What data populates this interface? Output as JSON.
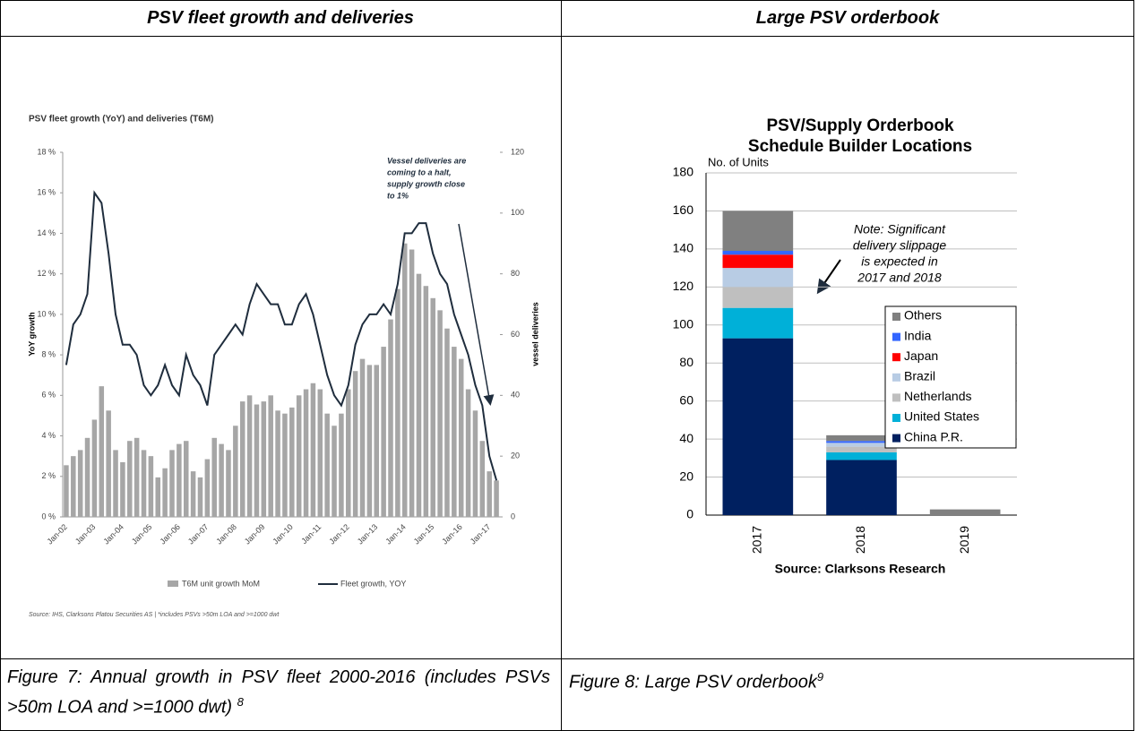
{
  "table": {
    "headers": [
      "PSV fleet growth and deliveries",
      "Large PSV orderbook"
    ],
    "captions": [
      {
        "text": "Figure 7: Annual growth in PSV fleet 2000-2016 (includes PSVs >50m LOA and >=1000 dwt)",
        "footnote": "8"
      },
      {
        "text": "Figure 8: Large PSV orderbook",
        "footnote": "9"
      }
    ]
  },
  "chart_data": [
    {
      "type": "combo",
      "title": "PSV fleet growth (YoY) and deliveries (T6M)",
      "ylabel": "YoY growth",
      "y2label": "vessel deliveries",
      "annotation_lines": [
        "Vessel deliveries are",
        "coming to a halt,",
        "supply growth close",
        "to 1%"
      ],
      "source": "Source: IHS, Clarksons Platou Securities AS | *includes PSVs >50m LOA and >=1000 dwt",
      "categories": [
        "Jan-02",
        null,
        null,
        null,
        "Jan-03",
        null,
        null,
        null,
        "Jan-04",
        null,
        null,
        null,
        "Jan-05",
        null,
        null,
        null,
        "Jan-06",
        null,
        null,
        null,
        "Jan-07",
        null,
        null,
        null,
        "Jan-08",
        null,
        null,
        null,
        "Jan-09",
        null,
        null,
        null,
        "Jan-10",
        null,
        null,
        null,
        "Jan-11",
        null,
        null,
        null,
        "Jan-12",
        null,
        null,
        null,
        "Jan-13",
        null,
        null,
        null,
        "Jan-14",
        null,
        null,
        null,
        "Jan-15",
        null,
        null,
        null,
        "Jan-16",
        null,
        null,
        null,
        "Jan-17",
        null
      ],
      "series": [
        {
          "name": "T6M unit growth MoM",
          "type": "bar",
          "axis": "y2",
          "color": "#a6a6a6",
          "values": [
            17,
            20,
            22,
            26,
            32,
            43,
            35,
            22,
            18,
            25,
            26,
            22,
            20,
            13,
            16,
            22,
            24,
            25,
            15,
            13,
            19,
            26,
            24,
            22,
            30,
            38,
            40,
            37,
            38,
            40,
            35,
            34,
            36,
            40,
            42,
            44,
            42,
            34,
            30,
            34,
            42,
            48,
            52,
            50,
            50,
            56,
            65,
            75,
            90,
            88,
            80,
            76,
            72,
            68,
            62,
            56,
            52,
            42,
            35,
            25,
            15,
            12
          ]
        },
        {
          "name": "Fleet growth, YOY",
          "type": "line",
          "color": "#1f2d3d",
          "values": [
            7.5,
            9.5,
            10,
            11,
            16,
            15.5,
            13,
            10,
            8.5,
            8.5,
            8,
            6.5,
            6,
            6.5,
            7.5,
            6.5,
            6,
            8,
            7,
            6.5,
            5.5,
            8,
            8.5,
            9,
            9.5,
            9,
            10.5,
            11.5,
            11,
            10.5,
            10.5,
            9.5,
            9.5,
            10.5,
            11,
            10,
            8.5,
            7,
            6,
            5.5,
            6.5,
            8.5,
            9.5,
            10,
            10,
            10.5,
            10,
            11.5,
            14,
            14,
            14.5,
            14.5,
            13,
            12,
            11.5,
            10,
            9,
            8,
            6.5,
            5.5,
            3,
            1.8
          ]
        }
      ],
      "ylim": [
        0,
        18
      ],
      "yticks": [
        {
          "value": 0,
          "label": "0 %"
        },
        {
          "value": 2,
          "label": "2 %"
        },
        {
          "value": 4,
          "label": "4 %"
        },
        {
          "value": 6,
          "label": "6 %"
        },
        {
          "value": 8,
          "label": "8 %"
        },
        {
          "value": 10,
          "label": "10 %"
        },
        {
          "value": 12,
          "label": "12 %"
        },
        {
          "value": 14,
          "label": "14 %"
        },
        {
          "value": 16,
          "label": "16 %"
        },
        {
          "value": 18,
          "label": "18 %"
        }
      ],
      "y2lim": [
        0,
        120
      ],
      "y2ticks": [
        0,
        20,
        40,
        60,
        80,
        100,
        120
      ],
      "grid": false
    },
    {
      "type": "stacked-bar",
      "title": "PSV/Supply Orderbook",
      "subtitle": "Schedule Builder Locations",
      "ylabel": "No. of Units",
      "source": "Source: Clarksons Research",
      "annotation_lines": [
        "Note: Significant",
        "delivery slippage",
        "is expected in",
        "2017 and 2018"
      ],
      "categories": [
        "2017",
        "2018",
        "2019"
      ],
      "series": [
        {
          "name": "China P.R.",
          "color": "#002060",
          "values": [
            93,
            29,
            0
          ]
        },
        {
          "name": "United States",
          "color": "#00b0d8",
          "values": [
            16,
            4,
            0
          ]
        },
        {
          "name": "Netherlands",
          "color": "#bfbfbf",
          "values": [
            11,
            3,
            0
          ]
        },
        {
          "name": "Brazil",
          "color": "#b8cce4",
          "values": [
            10,
            2,
            0
          ]
        },
        {
          "name": "Japan",
          "color": "#ff0000",
          "values": [
            7,
            0,
            0
          ]
        },
        {
          "name": "India",
          "color": "#3366ff",
          "values": [
            2,
            1,
            0
          ]
        },
        {
          "name": "Others",
          "color": "#808080",
          "values": [
            21,
            3,
            3
          ]
        }
      ],
      "ylim": [
        0,
        180
      ],
      "yticks": [
        0,
        20,
        40,
        60,
        80,
        100,
        120,
        140,
        160,
        180
      ],
      "grid": true,
      "legend": "right"
    }
  ]
}
